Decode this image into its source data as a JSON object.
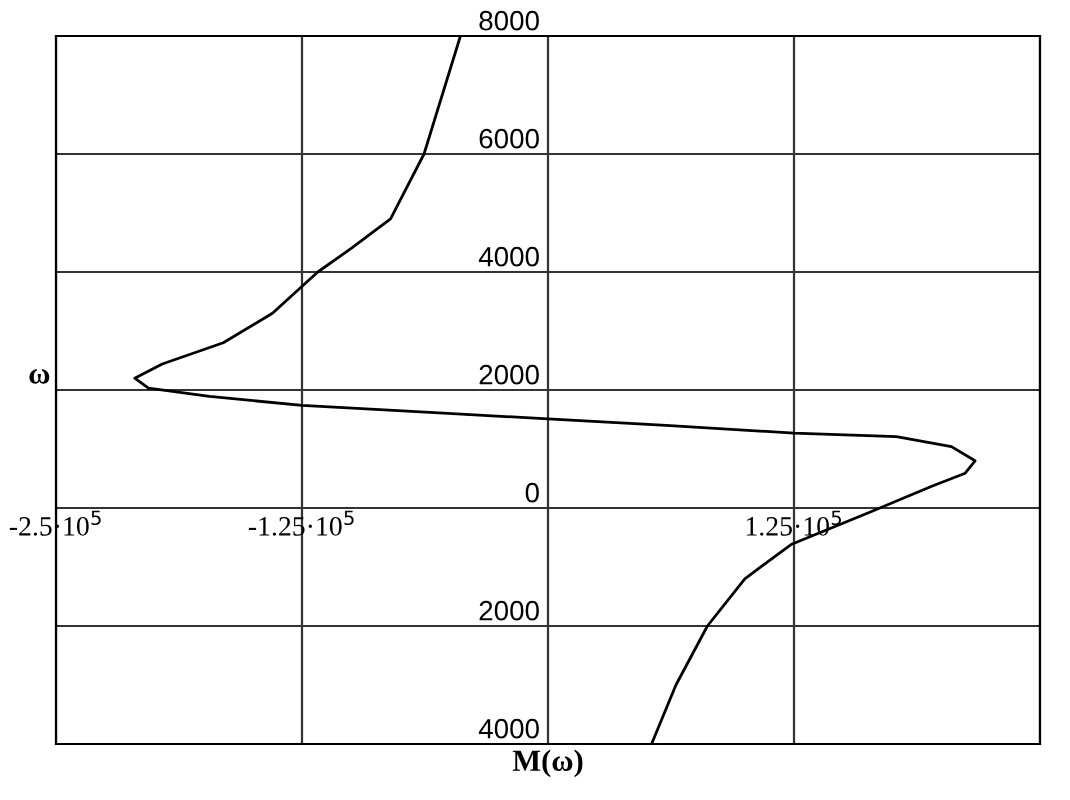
{
  "chart_data": {
    "type": "line",
    "xlabel": "M(ω)",
    "ylabel": "ω",
    "xlim": [
      -250000,
      250000
    ],
    "ylim": [
      -4000,
      8000
    ],
    "xticks": [
      {
        "value": -250000,
        "label": "-2.5·10$^{5}$"
      },
      {
        "value": -125000,
        "label": "-1.25·10$^{5}$"
      },
      {
        "value": 0,
        "label": null
      },
      {
        "value": 125000,
        "label": "1.25·10$^{5}$"
      },
      {
        "value": 250000,
        "label": null
      }
    ],
    "yticks": [
      {
        "value": -4000,
        "label": "4000"
      },
      {
        "value": -2000,
        "label": "2000"
      },
      0,
      2000,
      4000,
      6000,
      8000
    ],
    "grid": true,
    "marker": "none",
    "line_style": "solid",
    "series": [
      {
        "color": "#000000",
        "x": [
          -44500,
          -63000,
          -80000,
          -100000,
          -117000,
          -140000,
          -165000,
          -196000,
          -210000,
          -203000,
          -172000,
          -125000,
          -60000,
          0,
          60000,
          125000,
          177000,
          205000,
          217000,
          212000,
          195000,
          165000,
          123500,
          100000,
          81000,
          65000,
          53000
        ],
        "values": [
          8000,
          6000,
          4900,
          4400,
          4000,
          3300,
          2800,
          2440,
          2200,
          2030,
          1890,
          1740,
          1620,
          1510,
          1400,
          1270,
          1210,
          1040,
          800,
          590,
          370,
          -50,
          -620,
          -1200,
          -2000,
          -3000,
          -3970
        ]
      }
    ]
  }
}
